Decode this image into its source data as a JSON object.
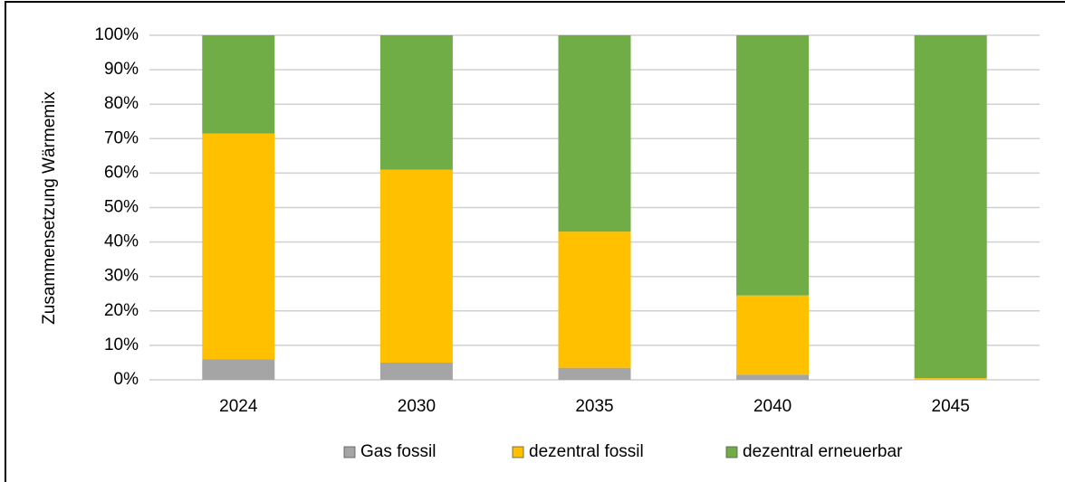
{
  "chart_data": {
    "type": "stacked_bar",
    "ylabel": "Zusammensetzung  Wärmemix",
    "categories": [
      "2024",
      "2030",
      "2035",
      "2040",
      "2045"
    ],
    "series": [
      {
        "name": "Gas fossil",
        "color": "#a5a5a5",
        "values": [
          6,
          5,
          3.5,
          1.5,
          0
        ]
      },
      {
        "name": "dezentral fossil",
        "color": "#ffc000",
        "values": [
          65.5,
          56,
          39.5,
          23,
          0.5
        ]
      },
      {
        "name": "dezentral erneuerbar",
        "color": "#70ad47",
        "values": [
          28.5,
          39,
          57,
          75.5,
          99.5
        ]
      }
    ],
    "ylim": [
      0,
      100
    ],
    "yticks": [
      {
        "value": 0,
        "label": "0%"
      },
      {
        "value": 10,
        "label": "10%"
      },
      {
        "value": 20,
        "label": "20%"
      },
      {
        "value": 30,
        "label": "30%"
      },
      {
        "value": 40,
        "label": "40%"
      },
      {
        "value": 50,
        "label": "50%"
      },
      {
        "value": 60,
        "label": "60%"
      },
      {
        "value": 70,
        "label": "70%"
      },
      {
        "value": 80,
        "label": "80%"
      },
      {
        "value": 90,
        "label": "90%"
      },
      {
        "value": 100,
        "label": "100%"
      }
    ],
    "grid": true,
    "legend": "bottom"
  }
}
